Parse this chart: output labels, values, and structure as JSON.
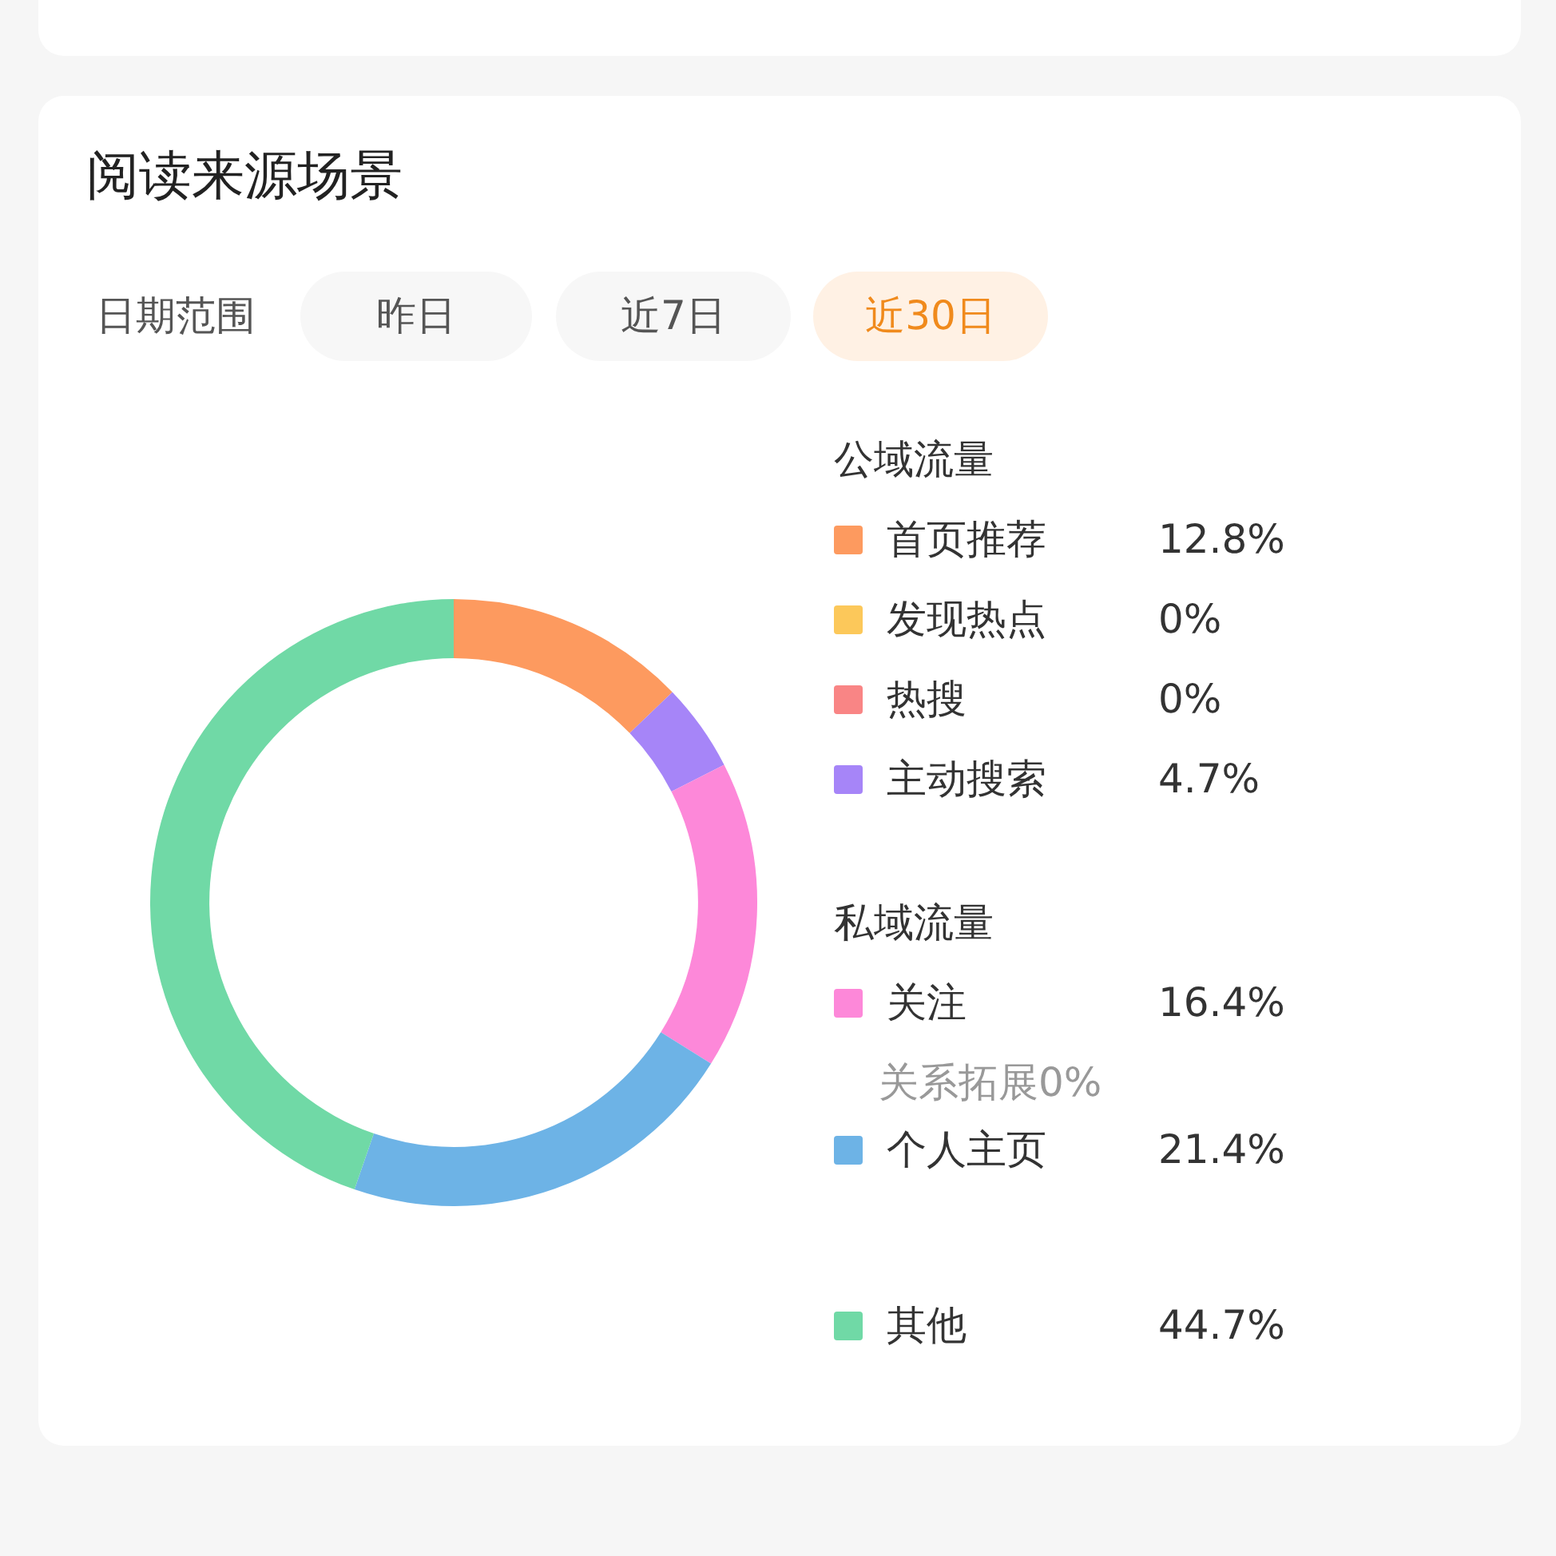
{
  "chart_data": {
    "type": "donut",
    "title": "阅读来源场景",
    "categories": [
      "首页推荐",
      "发现热点",
      "热搜",
      "主动搜索",
      "关注",
      "个人主页",
      "其他"
    ],
    "values": [
      12.8,
      0,
      0,
      4.7,
      16.4,
      21.4,
      44.7
    ],
    "colors": [
      "#fd9a5f",
      "#fcc85a",
      "#f98585",
      "#a685f8",
      "#fd88d9",
      "#6db3e6",
      "#70d9a6"
    ],
    "value_labels": [
      "12.8%",
      "0%",
      "0%",
      "4.7%",
      "16.4%",
      "21.4%",
      "44.7%"
    ],
    "legend": "right",
    "annotations": [
      "日期范围",
      "昨日",
      "近7日",
      "近30日",
      "公域流量",
      "私域流量",
      "关系拓展0%"
    ]
  }
}
